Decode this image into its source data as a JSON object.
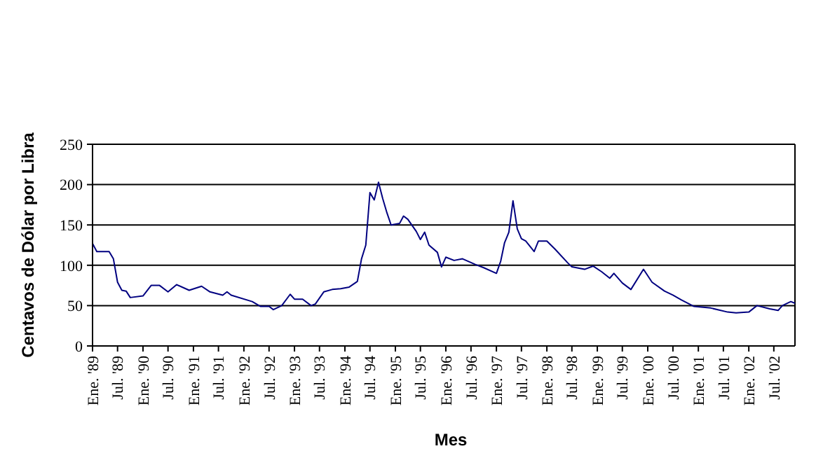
{
  "chart_data": {
    "type": "line",
    "xlabel": "Mes",
    "ylabel": "Centavos de Dólar por Libra",
    "x": [
      "1989-01",
      "1989-02",
      "1989-05",
      "1989-06",
      "1989-07",
      "1989-08",
      "1989-09",
      "1989-10",
      "1990-01",
      "1990-03",
      "1990-05",
      "1990-07",
      "1990-09",
      "1990-12",
      "1991-03",
      "1991-05",
      "1991-08",
      "1991-09",
      "1991-10",
      "1992-03",
      "1992-05",
      "1992-07",
      "1992-08",
      "1992-10",
      "1992-12",
      "1993-01",
      "1993-03",
      "1993-05",
      "1993-06",
      "1993-08",
      "1993-10",
      "1993-12",
      "1994-02",
      "1994-04",
      "1994-05",
      "1994-06",
      "1994-07",
      "1994-08",
      "1994-09",
      "1994-10",
      "1994-11",
      "1994-12",
      "1995-02",
      "1995-03",
      "1995-04",
      "1995-06",
      "1995-07",
      "1995-08",
      "1995-09",
      "1995-11",
      "1995-12",
      "1996-01",
      "1996-03",
      "1996-05",
      "1996-08",
      "1996-10",
      "1997-01",
      "1997-02",
      "1997-03",
      "1997-04",
      "1997-05",
      "1997-06",
      "1997-07",
      "1997-08",
      "1997-10",
      "1997-11",
      "1998-01",
      "1998-03",
      "1998-06",
      "1998-07",
      "1998-10",
      "1998-12",
      "1999-02",
      "1999-04",
      "1999-05",
      "1999-07",
      "1999-09",
      "1999-12",
      "2000-02",
      "2000-05",
      "2000-07",
      "2000-09",
      "2000-12",
      "2001-04",
      "2001-08",
      "2001-10",
      "2002-01",
      "2002-03",
      "2002-06",
      "2002-08",
      "2002-09",
      "2002-11",
      "2002-12"
    ],
    "series": [
      {
        "color": "#000080",
        "values": [
          127,
          117,
          117,
          108,
          79,
          69,
          68,
          60,
          62,
          75,
          75,
          67,
          76,
          69,
          74,
          67,
          63,
          67,
          63,
          55,
          49,
          49,
          45,
          50,
          64,
          58,
          58,
          50,
          52,
          67,
          70,
          71,
          73,
          80,
          108,
          125,
          190,
          181,
          203,
          183,
          165,
          150,
          152,
          161,
          157,
          142,
          132,
          141,
          125,
          116,
          98,
          110,
          106,
          108,
          101,
          97,
          90,
          105,
          128,
          141,
          180,
          145,
          133,
          130,
          117,
          130,
          130,
          120,
          103,
          98,
          95,
          99,
          92,
          84,
          90,
          78,
          70,
          95,
          79,
          68,
          63,
          57,
          49,
          47,
          42,
          41,
          42,
          50,
          46,
          44,
          50,
          55,
          53
        ]
      }
    ],
    "ylim": [
      0,
      250
    ],
    "yticks": [
      0,
      50,
      100,
      150,
      200,
      250
    ],
    "grid": "y",
    "marker": "none",
    "line_style": "solid",
    "xlim": [
      "1989-01",
      "2002-12"
    ],
    "xticks": [
      {
        "value": "1989-01",
        "label": "Ene. '89"
      },
      {
        "value": "1989-07",
        "label": "Jul. '89"
      },
      {
        "value": "1990-01",
        "label": "Ene. '90"
      },
      {
        "value": "1990-07",
        "label": "Jul. '90"
      },
      {
        "value": "1991-01",
        "label": "Ene. '91"
      },
      {
        "value": "1991-07",
        "label": "Jul. '91"
      },
      {
        "value": "1992-01",
        "label": "Ene. '92"
      },
      {
        "value": "1992-07",
        "label": "Jul. '92"
      },
      {
        "value": "1993-01",
        "label": "Ene. '93"
      },
      {
        "value": "1993-07",
        "label": "Jul. '93"
      },
      {
        "value": "1994-01",
        "label": "Ene. '94"
      },
      {
        "value": "1994-07",
        "label": "Jul. '94"
      },
      {
        "value": "1995-01",
        "label": "Ene. '95"
      },
      {
        "value": "1995-07",
        "label": "Jul. '95"
      },
      {
        "value": "1996-01",
        "label": "Ene. '96"
      },
      {
        "value": "1996-07",
        "label": "Jul. '96"
      },
      {
        "value": "1997-01",
        "label": "Ene. '97"
      },
      {
        "value": "1997-07",
        "label": "Jul. '97"
      },
      {
        "value": "1998-01",
        "label": "Ene. '98"
      },
      {
        "value": "1998-07",
        "label": "Jul. '98"
      },
      {
        "value": "1999-01",
        "label": "Ene. '99"
      },
      {
        "value": "1999-07",
        "label": "Jul. '99"
      },
      {
        "value": "2000-01",
        "label": "Ene. '00"
      },
      {
        "value": "2000-07",
        "label": "Jul. '00"
      },
      {
        "value": "2001-01",
        "label": "Ene. '01"
      },
      {
        "value": "2001-07",
        "label": "Jul. '01"
      },
      {
        "value": "2002-01",
        "label": "Ene. '02"
      },
      {
        "value": "2002-07",
        "label": "Jul. '02"
      }
    ]
  }
}
